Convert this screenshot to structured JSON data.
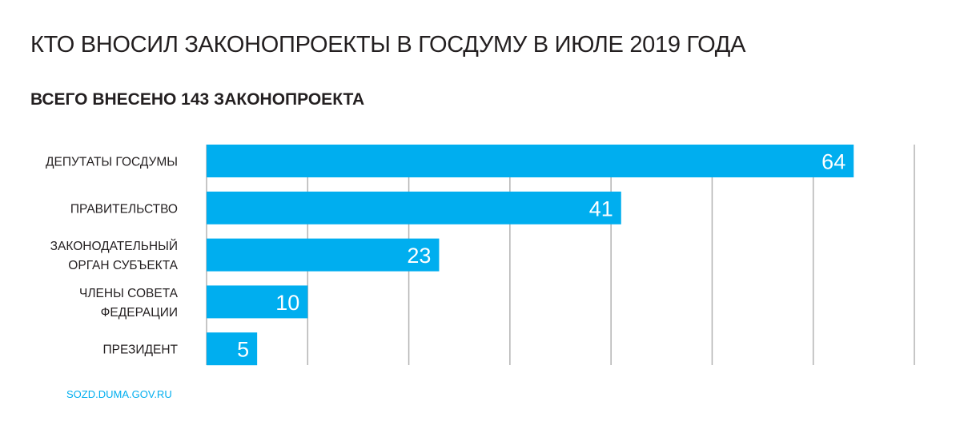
{
  "chart_data": {
    "type": "bar",
    "orientation": "horizontal",
    "title": "КТО ВНОСИЛ ЗАКОНОПРОЕКТЫ В ГОСДУМУ В ИЮЛЕ 2019 ГОДА",
    "subtitle": "ВСЕГО ВНЕСЕНО 143 ЗАКОНОПРОЕКТА",
    "categories": [
      [
        "ДЕПУТАТЫ ГОСДУМЫ"
      ],
      [
        "ПРАВИТЕЛЬСТВО"
      ],
      [
        "ЗАКОНОДАТЕЛЬНЫЙ",
        "ОРГАН СУБЪЕКТА"
      ],
      [
        "ЧЛЕНЫ СОВЕТА",
        "ФЕДЕРАЦИИ"
      ],
      [
        "ПРЕЗИДЕНТ"
      ]
    ],
    "values": [
      64,
      41,
      23,
      10,
      5
    ],
    "xlim": [
      0,
      70
    ],
    "grid_step": 10,
    "grid": true,
    "xlabel": "",
    "ylabel": "",
    "bar_color": "#00aeef",
    "grid_color": "#b3b3b3",
    "source": "SOZD.DUMA.GOV.RU"
  }
}
